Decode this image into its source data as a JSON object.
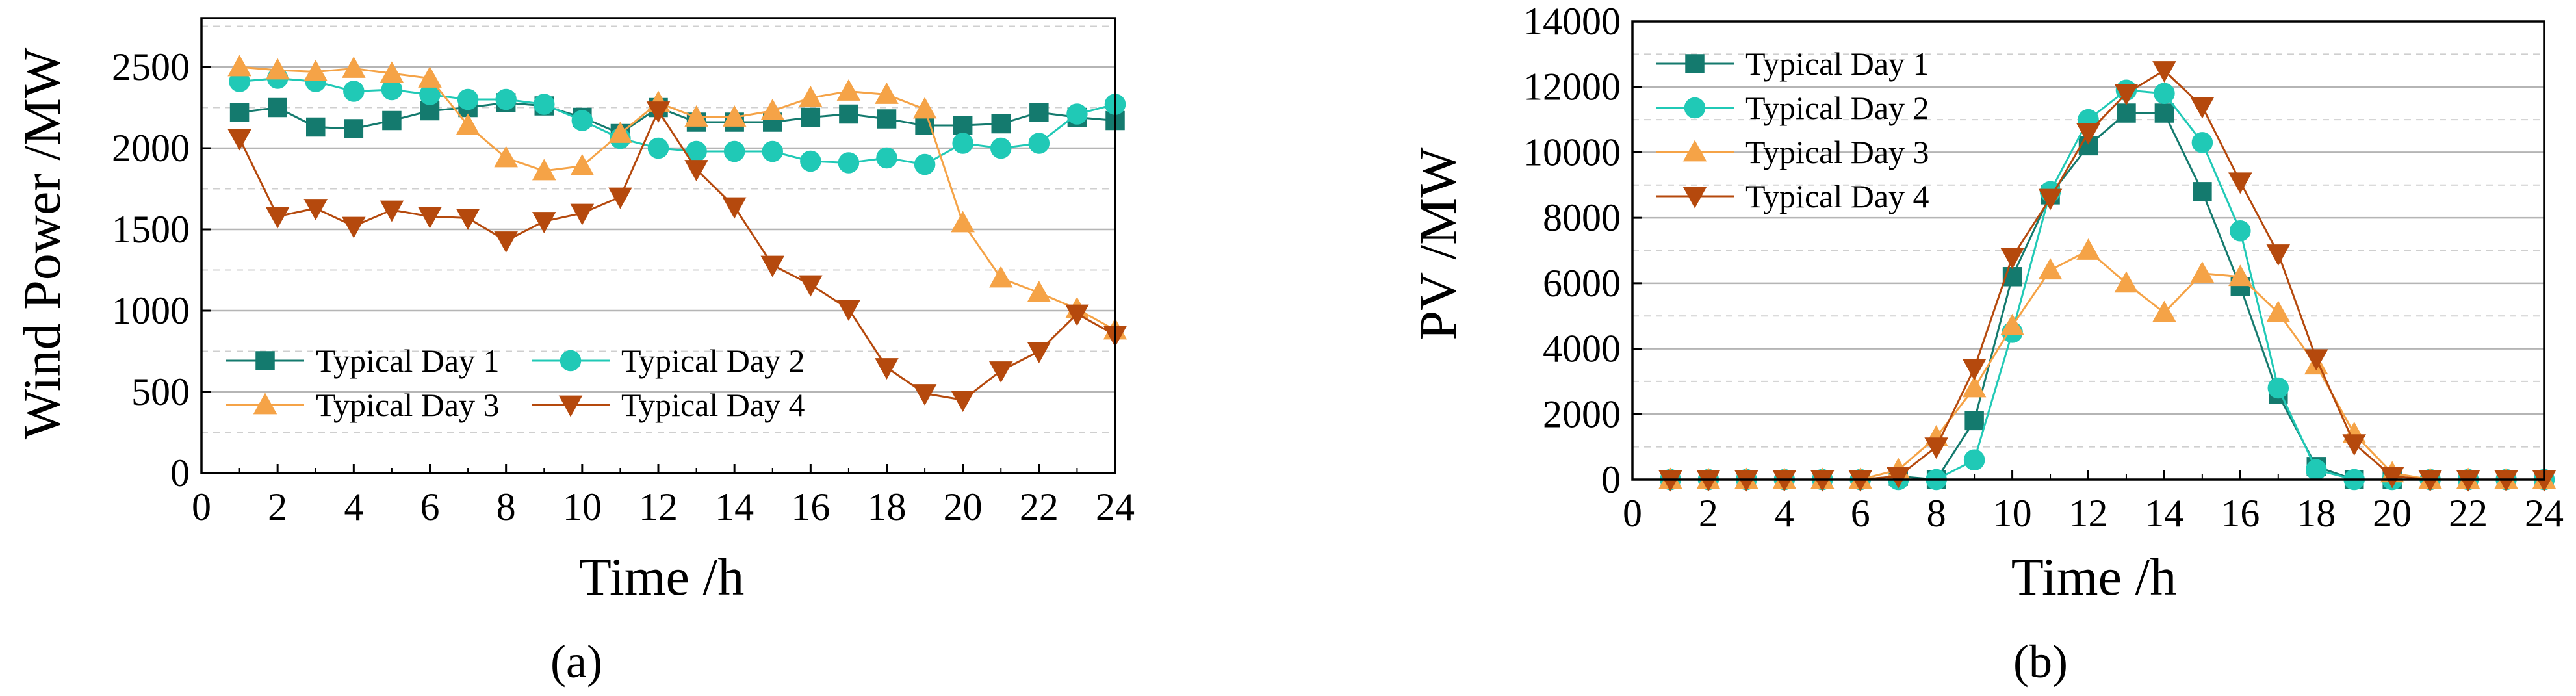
{
  "chart_data": [
    {
      "type": "line",
      "xlabel": "Time /h",
      "ylabel": "Wind Power /MW",
      "caption": "(a)",
      "xlim": [
        0,
        24
      ],
      "ylim": [
        0,
        2800
      ],
      "xticks": [
        "0",
        "2",
        "4",
        "6",
        "8",
        "10",
        "12",
        "14",
        "16",
        "18",
        "20",
        "22",
        "24"
      ],
      "yticks": [
        "0",
        "500",
        "1000",
        "1500",
        "2000",
        "2500"
      ],
      "grid": true,
      "legend_placement": "bottom-left",
      "x": [
        1,
        2,
        3,
        4,
        5,
        6,
        7,
        8,
        9,
        10,
        11,
        12,
        13,
        14,
        15,
        16,
        17,
        18,
        19,
        20,
        21,
        22,
        23,
        24
      ],
      "series": [
        {
          "name": "Typical Day 1",
          "color": "#147a6e",
          "marker": "square",
          "values": [
            2220,
            2250,
            2130,
            2120,
            2170,
            2230,
            2250,
            2280,
            2260,
            2190,
            2090,
            2250,
            2160,
            2160,
            2160,
            2190,
            2210,
            2180,
            2140,
            2140,
            2150,
            2220,
            2190,
            2170
          ]
        },
        {
          "name": "Typical Day 2",
          "color": "#20c9b6",
          "marker": "circle",
          "values": [
            2410,
            2430,
            2410,
            2350,
            2360,
            2330,
            2300,
            2300,
            2270,
            2170,
            2060,
            2000,
            1980,
            1980,
            1980,
            1920,
            1910,
            1940,
            1900,
            2030,
            2000,
            2030,
            2210,
            2270
          ]
        },
        {
          "name": "Typical Day 3",
          "color": "#f5a347",
          "marker": "triangle-up",
          "values": [
            2500,
            2480,
            2470,
            2490,
            2460,
            2430,
            2140,
            1940,
            1860,
            1890,
            2090,
            2280,
            2190,
            2190,
            2230,
            2310,
            2350,
            2330,
            2240,
            1540,
            1200,
            1110,
            1010,
            880
          ]
        },
        {
          "name": "Typical Day 4",
          "color": "#b5490d",
          "marker": "triangle-down",
          "values": [
            2060,
            1580,
            1630,
            1520,
            1620,
            1580,
            1570,
            1430,
            1550,
            1600,
            1700,
            2230,
            1870,
            1640,
            1280,
            1160,
            1010,
            650,
            490,
            450,
            630,
            750,
            980,
            850
          ]
        }
      ]
    },
    {
      "type": "line",
      "xlabel": "Time /h",
      "ylabel": "PV /MW",
      "caption": "(b)",
      "xlim": [
        0,
        24
      ],
      "ylim": [
        0,
        14000
      ],
      "xticks": [
        "0",
        "2",
        "4",
        "6",
        "8",
        "10",
        "12",
        "14",
        "16",
        "18",
        "20",
        "22",
        "24"
      ],
      "yticks": [
        "0",
        "2000",
        "4000",
        "6000",
        "8000",
        "10000",
        "12000",
        "14000"
      ],
      "grid": true,
      "legend_placement": "top-left",
      "x": [
        1,
        2,
        3,
        4,
        5,
        6,
        7,
        8,
        9,
        10,
        11,
        12,
        13,
        14,
        15,
        16,
        17,
        18,
        19,
        20,
        21,
        22,
        23,
        24
      ],
      "series": [
        {
          "name": "Typical Day 1",
          "color": "#147a6e",
          "marker": "square",
          "values": [
            0,
            0,
            0,
            0,
            0,
            0,
            100,
            0,
            1800,
            6200,
            8700,
            10200,
            11200,
            11200,
            8800,
            5900,
            2600,
            400,
            0,
            0,
            0,
            0,
            0,
            0
          ]
        },
        {
          "name": "Typical Day 2",
          "color": "#20c9b6",
          "marker": "circle",
          "values": [
            0,
            0,
            0,
            0,
            0,
            0,
            0,
            0,
            600,
            4500,
            8800,
            11000,
            11900,
            11800,
            10300,
            7600,
            2800,
            300,
            0,
            0,
            0,
            0,
            0,
            0
          ]
        },
        {
          "name": "Typical Day 3",
          "color": "#f5a347",
          "marker": "triangle-up",
          "values": [
            0,
            0,
            0,
            0,
            0,
            0,
            300,
            1300,
            2800,
            4700,
            6400,
            7000,
            6000,
            5100,
            6300,
            6200,
            5100,
            3500,
            1400,
            200,
            0,
            0,
            0,
            0
          ]
        },
        {
          "name": "Typical Day 4",
          "color": "#b5490d",
          "marker": "triangle-down",
          "values": [
            0,
            0,
            0,
            0,
            0,
            0,
            100,
            1000,
            3400,
            6800,
            8600,
            10600,
            11800,
            12500,
            11400,
            9100,
            6900,
            3700,
            1100,
            100,
            0,
            0,
            0,
            0
          ]
        }
      ]
    }
  ]
}
